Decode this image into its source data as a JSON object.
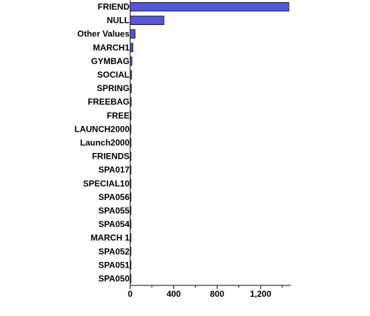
{
  "chart_data": {
    "type": "bar",
    "orientation": "horizontal",
    "title": "",
    "xlabel": "",
    "ylabel": "",
    "categories": [
      "FRIEND",
      "NULL",
      "Other Values",
      "MARCH1",
      "GYMBAG",
      "SOCIAL",
      "SPRING",
      "FREEBAG",
      "FREE",
      "LAUNCH2000",
      "Launch2000",
      "FRIENDS",
      "SPA017",
      "SPECIAL10",
      "SPA056",
      "SPA055",
      "SPA054",
      "MARCH 1",
      "SPA052",
      "SPA051",
      "SPA050"
    ],
    "values": [
      1460,
      310,
      45,
      25,
      15,
      12,
      10,
      9,
      7,
      6,
      6,
      5,
      5,
      4,
      3,
      3,
      3,
      3,
      3,
      3,
      3
    ],
    "xlim": [
      0,
      1480
    ],
    "xticks": [
      0,
      400,
      800,
      1200
    ],
    "xtick_labels": [
      "0",
      "400",
      "800",
      "1,200"
    ],
    "bar_color": "#5555dd",
    "grid": false,
    "legend": "none"
  }
}
